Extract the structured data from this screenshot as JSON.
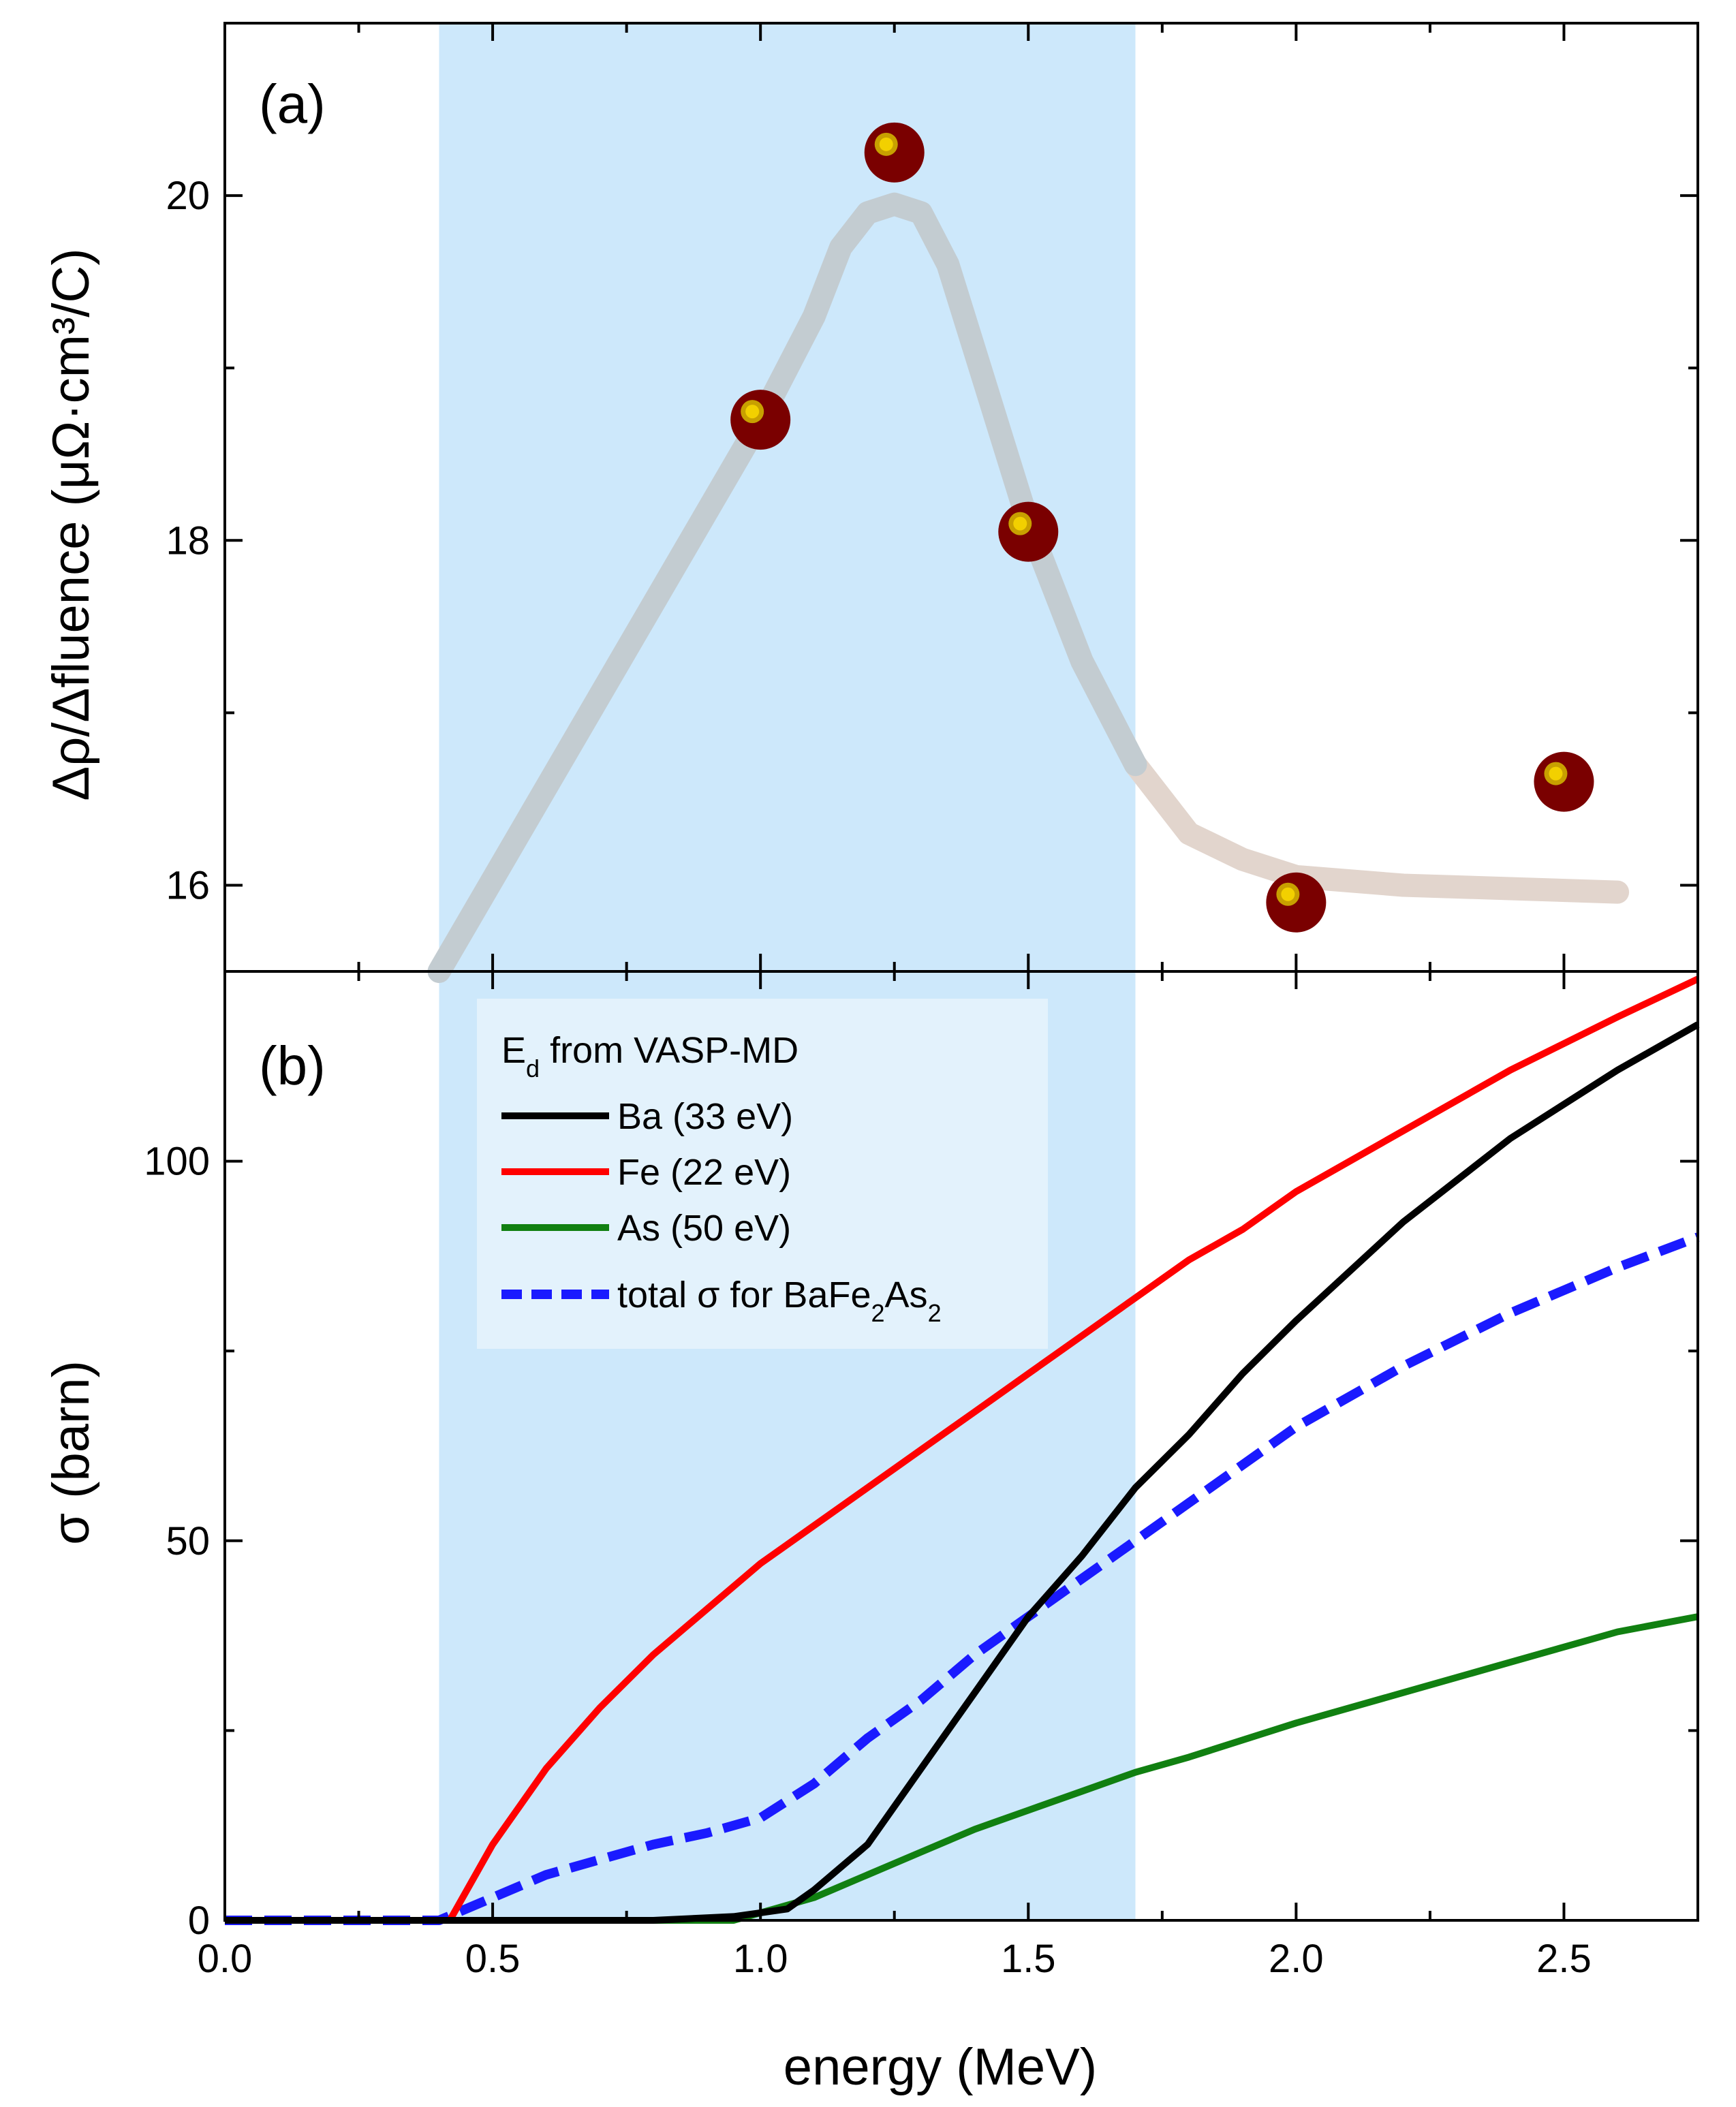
{
  "chart_data": [
    {
      "panel": "(a)",
      "type": "scatter",
      "ylabel": "Δρ/Δfluence (μΩ·cm³/C)",
      "xlim": [
        0.0,
        2.75
      ],
      "ylim": [
        15.5,
        21.0
      ],
      "yticks": [
        "16",
        "18",
        "20"
      ],
      "shaded_region_x": [
        0.4,
        1.7
      ],
      "shaded_color": "#cde8fb",
      "points": {
        "x": [
          1.0,
          1.25,
          1.5,
          2.0,
          2.5
        ],
        "y": [
          18.7,
          20.25,
          18.05,
          15.9,
          16.6
        ],
        "color": "#7a0000",
        "highlight_color": "#f2d000"
      },
      "guide_curve": {
        "x": [
          0.4,
          0.55,
          0.7,
          0.85,
          1.0,
          1.1,
          1.15,
          1.2,
          1.25,
          1.3,
          1.35,
          1.4,
          1.5,
          1.6,
          1.7,
          1.8,
          1.9,
          2.0,
          2.2,
          2.4,
          2.6
        ],
        "y": [
          15.5,
          16.3,
          17.1,
          17.9,
          18.7,
          19.3,
          19.7,
          19.9,
          19.95,
          19.9,
          19.6,
          19.1,
          18.1,
          17.3,
          16.7,
          16.3,
          16.15,
          16.05,
          16.0,
          15.98,
          15.96
        ],
        "color_inside": "#c3ccd1",
        "color_outside": "#e2d5cd"
      }
    },
    {
      "panel": "(b)",
      "type": "line",
      "xlabel": "energy (MeV)",
      "ylabel": "σ (barn)",
      "xlim": [
        0.0,
        2.75
      ],
      "ylim": [
        0,
        125
      ],
      "xticks": [
        "0.0",
        "0.5",
        "1.0",
        "1.5",
        "2.0",
        "2.5"
      ],
      "yticks": [
        "0",
        "50",
        "100"
      ],
      "shaded_region_x": [
        0.4,
        1.7
      ],
      "legend": {
        "title_main": "E",
        "title_sub": "d",
        "title_rest": " from VASP-MD",
        "placement": "top-left"
      },
      "series": [
        {
          "name": "Ba (33 eV)",
          "color": "#000000",
          "style": "solid",
          "x": [
            0.0,
            0.8,
            0.95,
            1.0,
            1.05,
            1.1,
            1.2,
            1.3,
            1.4,
            1.5,
            1.6,
            1.7,
            1.8,
            1.9,
            2.0,
            2.2,
            2.4,
            2.6,
            2.75
          ],
          "y": [
            0,
            0,
            0.5,
            1,
            1.5,
            4,
            10,
            20,
            30,
            40,
            48,
            57,
            64,
            72,
            79,
            92,
            103,
            112,
            118
          ]
        },
        {
          "name": "Fe (22 eV)",
          "color": "#ff0000",
          "style": "solid",
          "x": [
            0.0,
            0.42,
            0.5,
            0.6,
            0.7,
            0.8,
            0.9,
            1.0,
            1.1,
            1.2,
            1.3,
            1.4,
            1.5,
            1.6,
            1.7,
            1.8,
            1.9,
            2.0,
            2.2,
            2.4,
            2.6,
            2.75
          ],
          "y": [
            0,
            0,
            10,
            20,
            28,
            35,
            41,
            47,
            52,
            57,
            62,
            67,
            72,
            77,
            82,
            87,
            91,
            96,
            104,
            112,
            119,
            124
          ]
        },
        {
          "name": "As (50 eV)",
          "color": "#118011",
          "style": "solid",
          "x": [
            0.0,
            0.95,
            1.0,
            1.1,
            1.2,
            1.3,
            1.4,
            1.5,
            1.6,
            1.7,
            1.8,
            2.0,
            2.2,
            2.4,
            2.6,
            2.75
          ],
          "y": [
            0,
            0,
            1,
            3,
            6,
            9,
            12,
            14.5,
            17,
            19.5,
            21.5,
            26,
            30,
            34,
            38,
            40
          ]
        },
        {
          "name_prefix": "total σ for BaFe",
          "name_sub1": "2",
          "name_mid": "As",
          "name_sub2": "2",
          "color": "#1a1aff",
          "style": "dashed",
          "x": [
            0.0,
            0.4,
            0.5,
            0.6,
            0.7,
            0.8,
            0.9,
            1.0,
            1.1,
            1.2,
            1.3,
            1.4,
            1.5,
            1.6,
            1.7,
            1.8,
            1.9,
            2.0,
            2.2,
            2.4,
            2.6,
            2.75
          ],
          "y": [
            0,
            0,
            3,
            6,
            8,
            10,
            11.5,
            13.5,
            18,
            24,
            29,
            35,
            40,
            45,
            50,
            55,
            60,
            65,
            73,
            80,
            86,
            90
          ]
        }
      ]
    }
  ]
}
